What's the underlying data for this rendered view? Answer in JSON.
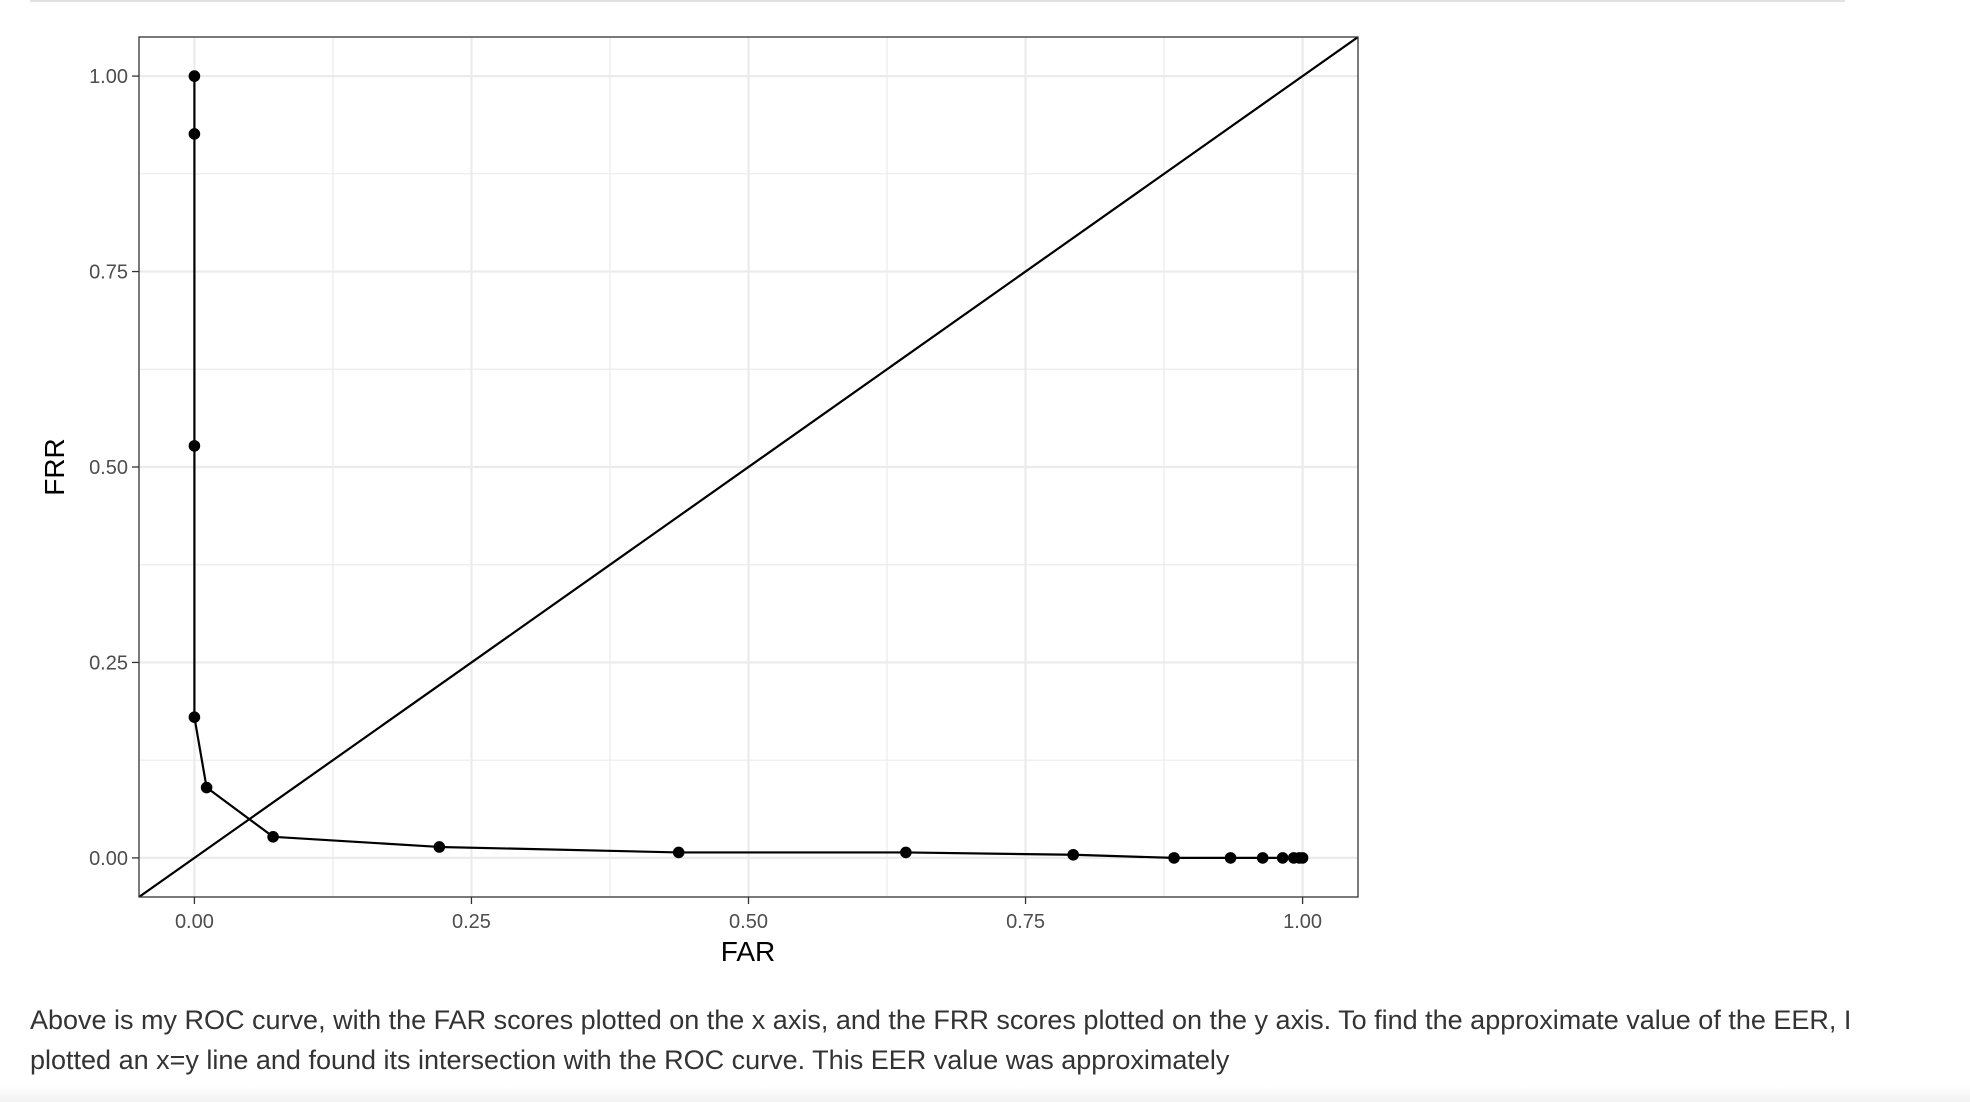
{
  "chart_data": {
    "type": "line",
    "title": "",
    "xlabel": "FAR",
    "ylabel": "FRR",
    "xlim": [
      -0.05,
      1.05
    ],
    "ylim": [
      -0.05,
      1.05
    ],
    "x_ticks": [
      "0.00",
      "0.25",
      "0.50",
      "0.75",
      "1.00"
    ],
    "y_ticks": [
      "0.00",
      "0.25",
      "0.50",
      "0.75",
      "1.00"
    ],
    "grid": true,
    "reference_line": "y=x",
    "series": [
      {
        "x": [
          0.0,
          0.0,
          0.0,
          0.0,
          0.011,
          0.071,
          0.221,
          0.437,
          0.642,
          0.793,
          0.884,
          0.935,
          0.964,
          0.982,
          0.992,
          0.997,
          1.0
        ],
        "y": [
          1.0,
          0.926,
          0.527,
          0.18,
          0.09,
          0.027,
          0.014,
          0.007,
          0.007,
          0.004,
          0.0,
          0.0,
          0.0,
          0.0,
          0.0,
          0.0,
          0.0
        ]
      }
    ],
    "colors": {
      "line": "#000000",
      "grid": "#ebebeb",
      "axis_text": "#4d4d4d",
      "panel_border": "#333333"
    }
  },
  "caption": "Above is my ROC curve, with the FAR scores plotted on the x axis, and the FRR scores plotted on the y axis. To find the approximate value of the EER, I plotted an x=y line and found its intersection with the ROC curve. This EER value was approximately"
}
